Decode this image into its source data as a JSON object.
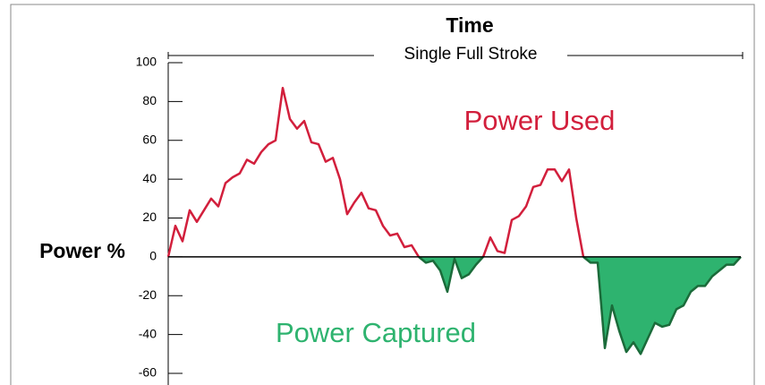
{
  "chart_data": {
    "type": "line",
    "title": "Time",
    "subtitle": "Single Full Stroke",
    "ylabel": "Power %",
    "categories": [
      null,
      null,
      null,
      null,
      null,
      null,
      null,
      null,
      null,
      null,
      null,
      null,
      null,
      null,
      null,
      null,
      null,
      null,
      null,
      null,
      null,
      null,
      null,
      null,
      null,
      null,
      null,
      null,
      null,
      null,
      null,
      null,
      null,
      null,
      null,
      null,
      null,
      null,
      null,
      null,
      null,
      null,
      null,
      null,
      null,
      null,
      null,
      null,
      null,
      null,
      null,
      null,
      null,
      null,
      null,
      null,
      null,
      null,
      null,
      null,
      null,
      null,
      null,
      null,
      null,
      null,
      null,
      null,
      null,
      null,
      null,
      null,
      null,
      null,
      null,
      null,
      null,
      null,
      null,
      null,
      null
    ],
    "series": [
      {
        "name": "Power Used",
        "color": "#d21f3c",
        "values": [
          0,
          16,
          8,
          24,
          18,
          24,
          30,
          26,
          38,
          41,
          43,
          50,
          48,
          54,
          58,
          60,
          87,
          71,
          66,
          70,
          59,
          58,
          49,
          51,
          40,
          22,
          28,
          33,
          25,
          24,
          16,
          11,
          12,
          5,
          6,
          0,
          null,
          null,
          null,
          null,
          null,
          null,
          null,
          null,
          0,
          10,
          3,
          2,
          19,
          21,
          26,
          36,
          37,
          45,
          45,
          39,
          45,
          20,
          0,
          null,
          null,
          null,
          null,
          null,
          null,
          null,
          null,
          null,
          null,
          null,
          null,
          null,
          null,
          null,
          null,
          null,
          null,
          null,
          null,
          null,
          0
        ]
      },
      {
        "name": "Power Captured",
        "color": "#1b6b3a",
        "fill": "#2eb36f",
        "values": [
          0,
          null,
          null,
          null,
          null,
          null,
          null,
          null,
          null,
          null,
          null,
          null,
          null,
          null,
          null,
          null,
          null,
          null,
          null,
          null,
          null,
          null,
          null,
          null,
          null,
          null,
          null,
          null,
          null,
          null,
          null,
          null,
          null,
          null,
          null,
          0,
          -3,
          -2,
          -7,
          -18,
          -1,
          -11,
          -9,
          -4,
          0,
          null,
          null,
          null,
          null,
          null,
          null,
          null,
          null,
          null,
          null,
          null,
          null,
          null,
          0,
          -3,
          -3,
          -47,
          -25,
          -38,
          -49,
          -44,
          -50,
          -42,
          -34,
          -36,
          -35,
          -27,
          -25,
          -18,
          -15,
          -15,
          -10,
          -7,
          -4,
          -4,
          0
        ]
      }
    ],
    "ylim": [
      -60,
      100
    ],
    "yticks": [
      100,
      80,
      60,
      40,
      20,
      0,
      -20,
      -40,
      -60
    ]
  }
}
